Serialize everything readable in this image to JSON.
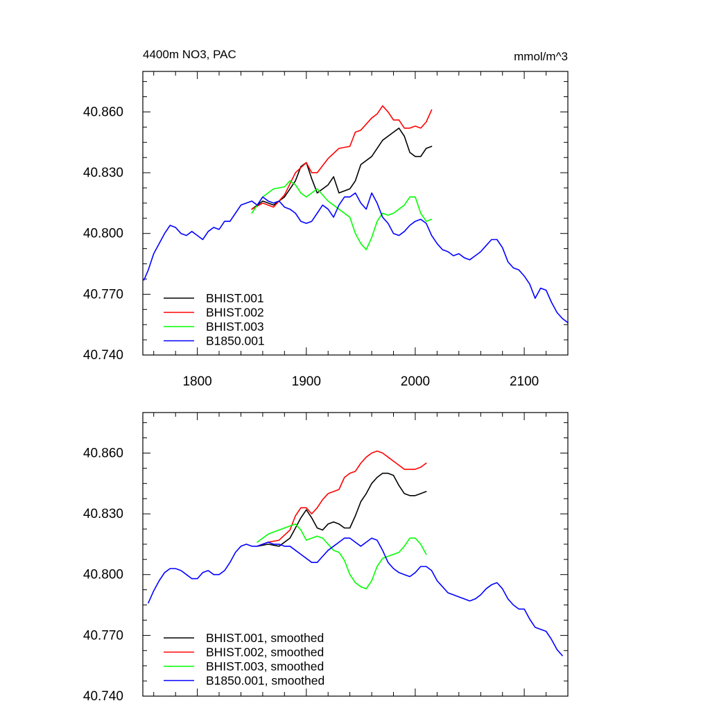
{
  "chart_data": [
    {
      "type": "line",
      "title": "4400m NO3, PAC",
      "units": "mmol/m^3",
      "xlim": [
        1750,
        2140
      ],
      "ylim": [
        40.74,
        40.88
      ],
      "xticks": [
        1800,
        1900,
        2000,
        2100
      ],
      "xtick_labels": [
        "1800",
        "1900",
        "2000",
        "2100"
      ],
      "yticks": [
        40.74,
        40.77,
        40.8,
        40.83,
        40.86
      ],
      "ytick_labels": [
        "40.740",
        "40.770",
        "40.800",
        "40.830",
        "40.860"
      ],
      "legend_position": "bottom-left",
      "series": [
        {
          "name": "BHIST.001",
          "color": "#000000",
          "x": [
            1850,
            1860,
            1870,
            1880,
            1890,
            1895,
            1900,
            1905,
            1910,
            1920,
            1925,
            1930,
            1940,
            1945,
            1950,
            1960,
            1970,
            1980,
            1985,
            1990,
            1995,
            2000,
            2005,
            2010,
            2015
          ],
          "y": [
            40.812,
            40.816,
            40.814,
            40.818,
            40.826,
            40.833,
            40.835,
            40.827,
            40.82,
            40.824,
            40.828,
            40.82,
            40.822,
            40.826,
            40.834,
            40.838,
            40.846,
            40.85,
            40.852,
            40.848,
            40.84,
            40.838,
            40.838,
            40.842,
            40.843
          ]
        },
        {
          "name": "BHIST.002",
          "color": "#ff0000",
          "x": [
            1850,
            1860,
            1870,
            1880,
            1890,
            1900,
            1905,
            1910,
            1920,
            1930,
            1940,
            1945,
            1950,
            1960,
            1965,
            1970,
            1975,
            1980,
            1985,
            1990,
            1995,
            2000,
            2005,
            2010,
            2015
          ],
          "y": [
            40.812,
            40.815,
            40.813,
            40.819,
            40.83,
            40.835,
            40.83,
            40.83,
            40.837,
            40.842,
            40.843,
            40.85,
            40.851,
            40.857,
            40.859,
            40.863,
            40.86,
            40.856,
            40.856,
            40.852,
            40.852,
            40.853,
            40.852,
            40.855,
            40.861
          ]
        },
        {
          "name": "BHIST.003",
          "color": "#00ff00",
          "x": [
            1850,
            1860,
            1870,
            1880,
            1885,
            1890,
            1895,
            1900,
            1910,
            1920,
            1930,
            1940,
            1945,
            1950,
            1955,
            1960,
            1965,
            1970,
            1975,
            1980,
            1985,
            1990,
            1995,
            2000,
            2005,
            2010,
            2015
          ],
          "y": [
            40.81,
            40.818,
            40.822,
            40.823,
            40.826,
            40.824,
            40.82,
            40.818,
            40.822,
            40.816,
            40.812,
            40.808,
            40.8,
            40.795,
            40.792,
            40.798,
            40.806,
            40.81,
            40.809,
            40.81,
            40.812,
            40.814,
            40.818,
            40.818,
            40.81,
            40.806,
            40.807
          ]
        },
        {
          "name": "B1850.001",
          "color": "#0000ff",
          "x": [
            1751,
            1755,
            1760,
            1765,
            1770,
            1775,
            1780,
            1785,
            1790,
            1795,
            1800,
            1805,
            1810,
            1815,
            1820,
            1825,
            1830,
            1835,
            1840,
            1845,
            1850,
            1855,
            1860,
            1865,
            1870,
            1875,
            1880,
            1885,
            1890,
            1895,
            1900,
            1905,
            1910,
            1915,
            1920,
            1925,
            1930,
            1935,
            1940,
            1945,
            1950,
            1955,
            1960,
            1965,
            1970,
            1975,
            1980,
            1985,
            1990,
            1995,
            2000,
            2005,
            2010,
            2015,
            2020,
            2025,
            2030,
            2035,
            2040,
            2045,
            2050,
            2055,
            2060,
            2065,
            2070,
            2075,
            2080,
            2085,
            2090,
            2095,
            2100,
            2105,
            2110,
            2115,
            2120,
            2125,
            2130,
            2135,
            2140
          ],
          "y": [
            40.777,
            40.782,
            40.79,
            40.795,
            40.8,
            40.804,
            40.803,
            40.8,
            40.799,
            40.801,
            40.799,
            40.797,
            40.801,
            40.803,
            40.802,
            40.806,
            40.806,
            40.81,
            40.814,
            40.815,
            40.816,
            40.814,
            40.818,
            40.816,
            40.815,
            40.816,
            40.813,
            40.812,
            40.81,
            40.806,
            40.805,
            40.806,
            40.81,
            40.814,
            40.812,
            40.808,
            40.814,
            40.818,
            40.818,
            40.82,
            40.815,
            40.812,
            40.82,
            40.815,
            40.808,
            40.805,
            40.8,
            40.799,
            40.801,
            40.804,
            40.806,
            40.807,
            40.805,
            40.799,
            40.795,
            40.792,
            40.791,
            40.789,
            40.79,
            40.788,
            40.787,
            40.789,
            40.791,
            40.794,
            40.797,
            40.797,
            40.793,
            40.786,
            40.783,
            40.782,
            40.779,
            40.775,
            40.768,
            40.773,
            40.772,
            40.766,
            40.761,
            40.758,
            40.756
          ]
        }
      ]
    },
    {
      "type": "line",
      "xlim": [
        1750,
        2140
      ],
      "ylim": [
        40.74,
        40.88
      ],
      "xticks": [
        1800,
        1900,
        2000,
        2100
      ],
      "yticks": [
        40.74,
        40.77,
        40.8,
        40.83,
        40.86
      ],
      "ytick_labels": [
        "40.740",
        "40.770",
        "40.800",
        "40.830",
        "40.860"
      ],
      "legend_position": "bottom-left",
      "series": [
        {
          "name": "BHIST.001, smoothed",
          "color": "#000000",
          "x": [
            1855,
            1865,
            1875,
            1885,
            1890,
            1895,
            1900,
            1905,
            1910,
            1915,
            1920,
            1925,
            1930,
            1935,
            1940,
            1945,
            1950,
            1955,
            1960,
            1965,
            1970,
            1975,
            1980,
            1985,
            1990,
            1995,
            2000,
            2005,
            2010
          ],
          "y": [
            40.814,
            40.815,
            40.814,
            40.818,
            40.823,
            40.828,
            40.832,
            40.828,
            40.823,
            40.822,
            40.825,
            40.826,
            40.825,
            40.823,
            40.823,
            40.829,
            40.836,
            40.84,
            40.845,
            40.848,
            40.85,
            40.85,
            40.849,
            40.844,
            40.84,
            40.839,
            40.839,
            40.84,
            40.841
          ]
        },
        {
          "name": "BHIST.002, smoothed",
          "color": "#ff0000",
          "x": [
            1855,
            1865,
            1875,
            1885,
            1890,
            1895,
            1900,
            1905,
            1910,
            1915,
            1920,
            1925,
            1930,
            1935,
            1940,
            1945,
            1950,
            1955,
            1960,
            1965,
            1970,
            1975,
            1980,
            1985,
            1990,
            1995,
            2000,
            2005,
            2010
          ],
          "y": [
            40.814,
            40.816,
            40.817,
            40.822,
            40.829,
            40.833,
            40.833,
            40.83,
            40.833,
            40.837,
            40.84,
            40.841,
            40.842,
            40.848,
            40.85,
            40.851,
            40.855,
            40.858,
            40.86,
            40.861,
            40.86,
            40.858,
            40.856,
            40.854,
            40.852,
            40.852,
            40.852,
            40.853,
            40.855
          ]
        },
        {
          "name": "BHIST.003, smoothed",
          "color": "#00ff00",
          "x": [
            1855,
            1865,
            1875,
            1880,
            1885,
            1890,
            1895,
            1900,
            1905,
            1910,
            1915,
            1920,
            1925,
            1930,
            1935,
            1940,
            1945,
            1950,
            1955,
            1960,
            1965,
            1970,
            1975,
            1980,
            1985,
            1990,
            1995,
            2000,
            2005,
            2010
          ],
          "y": [
            40.816,
            40.82,
            40.822,
            40.823,
            40.824,
            40.825,
            40.822,
            40.817,
            40.818,
            40.819,
            40.818,
            40.815,
            40.812,
            40.811,
            40.807,
            40.8,
            40.796,
            40.794,
            40.793,
            40.797,
            40.804,
            40.808,
            40.809,
            40.81,
            40.811,
            40.814,
            40.818,
            40.818,
            40.815,
            40.81
          ]
        },
        {
          "name": "B1850.001, smoothed",
          "color": "#0000ff",
          "x": [
            1755,
            1760,
            1765,
            1770,
            1775,
            1780,
            1785,
            1790,
            1795,
            1800,
            1805,
            1810,
            1815,
            1820,
            1825,
            1830,
            1835,
            1840,
            1845,
            1850,
            1855,
            1860,
            1865,
            1870,
            1875,
            1880,
            1885,
            1890,
            1895,
            1900,
            1905,
            1910,
            1915,
            1920,
            1925,
            1930,
            1935,
            1940,
            1945,
            1950,
            1955,
            1960,
            1965,
            1970,
            1975,
            1980,
            1985,
            1990,
            1995,
            2000,
            2005,
            2010,
            2015,
            2020,
            2025,
            2030,
            2035,
            2040,
            2045,
            2050,
            2055,
            2060,
            2065,
            2070,
            2075,
            2080,
            2085,
            2090,
            2095,
            2100,
            2105,
            2110,
            2115,
            2120,
            2125,
            2130,
            2135
          ],
          "y": [
            40.786,
            40.792,
            40.797,
            40.801,
            40.803,
            40.803,
            40.802,
            40.8,
            40.798,
            40.798,
            40.801,
            40.802,
            40.8,
            40.8,
            40.802,
            40.806,
            40.811,
            40.814,
            40.815,
            40.814,
            40.814,
            40.815,
            40.816,
            40.815,
            40.815,
            40.814,
            40.814,
            40.812,
            40.81,
            40.808,
            40.806,
            40.806,
            40.809,
            40.812,
            40.814,
            40.816,
            40.818,
            40.818,
            40.816,
            40.814,
            40.816,
            40.818,
            40.817,
            40.812,
            40.806,
            40.803,
            40.801,
            40.8,
            40.799,
            40.801,
            40.804,
            40.804,
            40.802,
            40.797,
            40.794,
            40.791,
            40.79,
            40.789,
            40.788,
            40.787,
            40.788,
            40.79,
            40.793,
            40.795,
            40.796,
            40.793,
            40.788,
            40.785,
            40.783,
            40.783,
            40.778,
            40.774,
            40.773,
            40.772,
            40.768,
            40.763,
            40.76
          ]
        }
      ]
    }
  ]
}
